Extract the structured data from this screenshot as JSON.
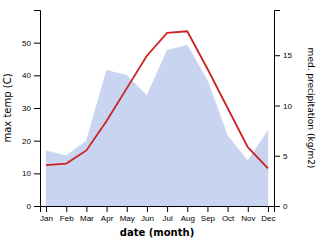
{
  "chart_data": {
    "type": "line",
    "categories": [
      "Jan",
      "Feb",
      "Mar",
      "Apr",
      "May",
      "Jun",
      "Jul",
      "Aug",
      "Sep",
      "Oct",
      "Nov",
      "Dec"
    ],
    "series": [
      {
        "type": "area",
        "axis": "y2",
        "color": "#c8d4f0",
        "values": [
          5.5,
          5.0,
          6.5,
          13.5,
          13.0,
          11.0,
          15.5,
          16.0,
          12.5,
          7.0,
          4.5,
          7.5
        ]
      },
      {
        "type": "line",
        "color": "#cc2222",
        "values": [
          12.5,
          13.0,
          17.0,
          26.0,
          36.0,
          46.0,
          53.0,
          53.5,
          42.0,
          30.0,
          18.0,
          11.5
        ]
      }
    ],
    "x_label": "date (month)",
    "y_label": "max temp (C)",
    "y2_label": "med. precipitation (kg/m2)",
    "ylim": [
      0,
      60
    ],
    "yticks": [
      0,
      10,
      20,
      30,
      40,
      50
    ],
    "y2lim": [
      0,
      19.5
    ],
    "y2ticks": [
      0,
      5,
      10,
      15
    ],
    "grid": false
  }
}
